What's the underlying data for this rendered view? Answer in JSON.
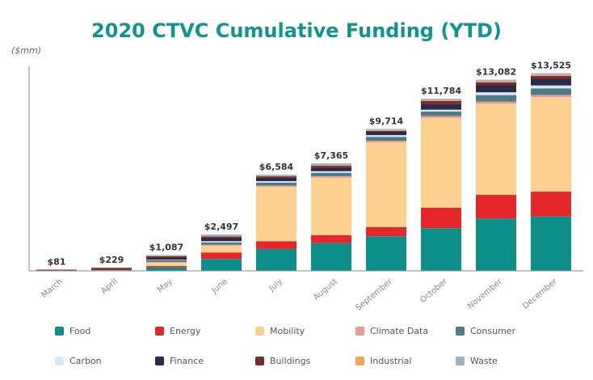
{
  "chart_data": {
    "type": "bar",
    "stacked": true,
    "title": "2020 CTVC Cumulative Funding (YTD)",
    "ylabel": "($mm)",
    "xlabel": "",
    "ylim": [
      0,
      14000
    ],
    "grid": false,
    "legend_position": "bottom",
    "categories": [
      "March",
      "April",
      "May",
      "June",
      "July",
      "August",
      "September",
      "October",
      "November",
      "December"
    ],
    "totals": [
      "$81",
      "$229",
      "$1,087",
      "$2,497",
      "$6,584",
      "$7,365",
      "$9,714",
      "$11,784",
      "$13,082",
      "$13,525"
    ],
    "series": [
      {
        "name": "Food",
        "color": "#0c8f8a",
        "values": [
          10,
          20,
          240,
          820,
          1500,
          1900,
          2370,
          2920,
          3580,
          3720
        ]
      },
      {
        "name": "Energy",
        "color": "#e5262a",
        "values": [
          5,
          25,
          90,
          440,
          520,
          540,
          620,
          1400,
          1620,
          1700
        ]
      },
      {
        "name": "Mobility",
        "color": "#fcd18f",
        "values": [
          5,
          25,
          260,
          470,
          3740,
          3940,
          5800,
          6150,
          6240,
          6470
        ]
      },
      {
        "name": "Climate Data",
        "color": "#e59b96",
        "values": [
          0,
          5,
          20,
          50,
          80,
          100,
          120,
          130,
          140,
          150
        ]
      },
      {
        "name": "Consumer",
        "color": "#4f7b82",
        "values": [
          0,
          5,
          120,
          170,
          200,
          230,
          260,
          300,
          450,
          450
        ]
      },
      {
        "name": "Carbon",
        "color": "#d8e8fb",
        "values": [
          0,
          0,
          30,
          80,
          100,
          110,
          120,
          130,
          190,
          200
        ]
      },
      {
        "name": "Finance",
        "color": "#2b2a4a",
        "values": [
          5,
          10,
          150,
          250,
          240,
          250,
          250,
          390,
          480,
          450
        ]
      },
      {
        "name": "Buildings",
        "color": "#7a2b2b",
        "values": [
          56,
          119,
          100,
          70,
          90,
          120,
          40,
          200,
          200,
          200
        ]
      },
      {
        "name": "Industrial",
        "color": "#f2a35b",
        "values": [
          0,
          20,
          20,
          50,
          50,
          60,
          60,
          60,
          70,
          70
        ]
      },
      {
        "name": "Waste",
        "color": "#9eb3c8",
        "values": [
          0,
          0,
          57,
          97,
          64,
          115,
          74,
          104,
          112,
          115
        ]
      }
    ]
  }
}
